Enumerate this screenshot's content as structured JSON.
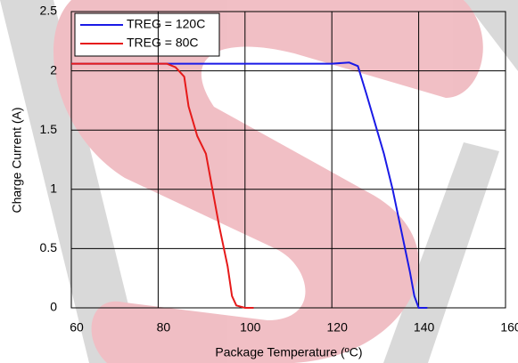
{
  "chart_data": {
    "type": "line",
    "x_label": "Package Temperature (ºC)",
    "y_label": "Charge Current (A)",
    "xlim": [
      60,
      160
    ],
    "xticks": [
      60,
      80,
      100,
      120,
      140,
      160
    ],
    "ylim": [
      0,
      2.5
    ],
    "yticks": [
      0,
      0.5,
      1,
      1.5,
      2,
      2.5
    ],
    "grid": true,
    "legend": "top-left",
    "series": [
      {
        "name": "TREG = 120C",
        "color": "#1a1ae6",
        "x": [
          60,
          80,
          100,
          120,
          124,
          126,
          128,
          130,
          132,
          134,
          136,
          138,
          139,
          140,
          142
        ],
        "values": [
          2.06,
          2.06,
          2.06,
          2.06,
          2.07,
          2.04,
          1.8,
          1.55,
          1.3,
          1.0,
          0.65,
          0.3,
          0.1,
          0,
          0
        ]
      },
      {
        "name": "TREG = 80C",
        "color": "#e61a1a",
        "x": [
          60,
          82,
          84,
          86,
          87,
          89,
          91,
          92,
          94,
          96,
          97,
          98,
          100,
          102
        ],
        "values": [
          2.06,
          2.06,
          2.03,
          1.95,
          1.7,
          1.45,
          1.3,
          1.1,
          0.7,
          0.35,
          0.1,
          0.02,
          0,
          0
        ]
      }
    ]
  }
}
